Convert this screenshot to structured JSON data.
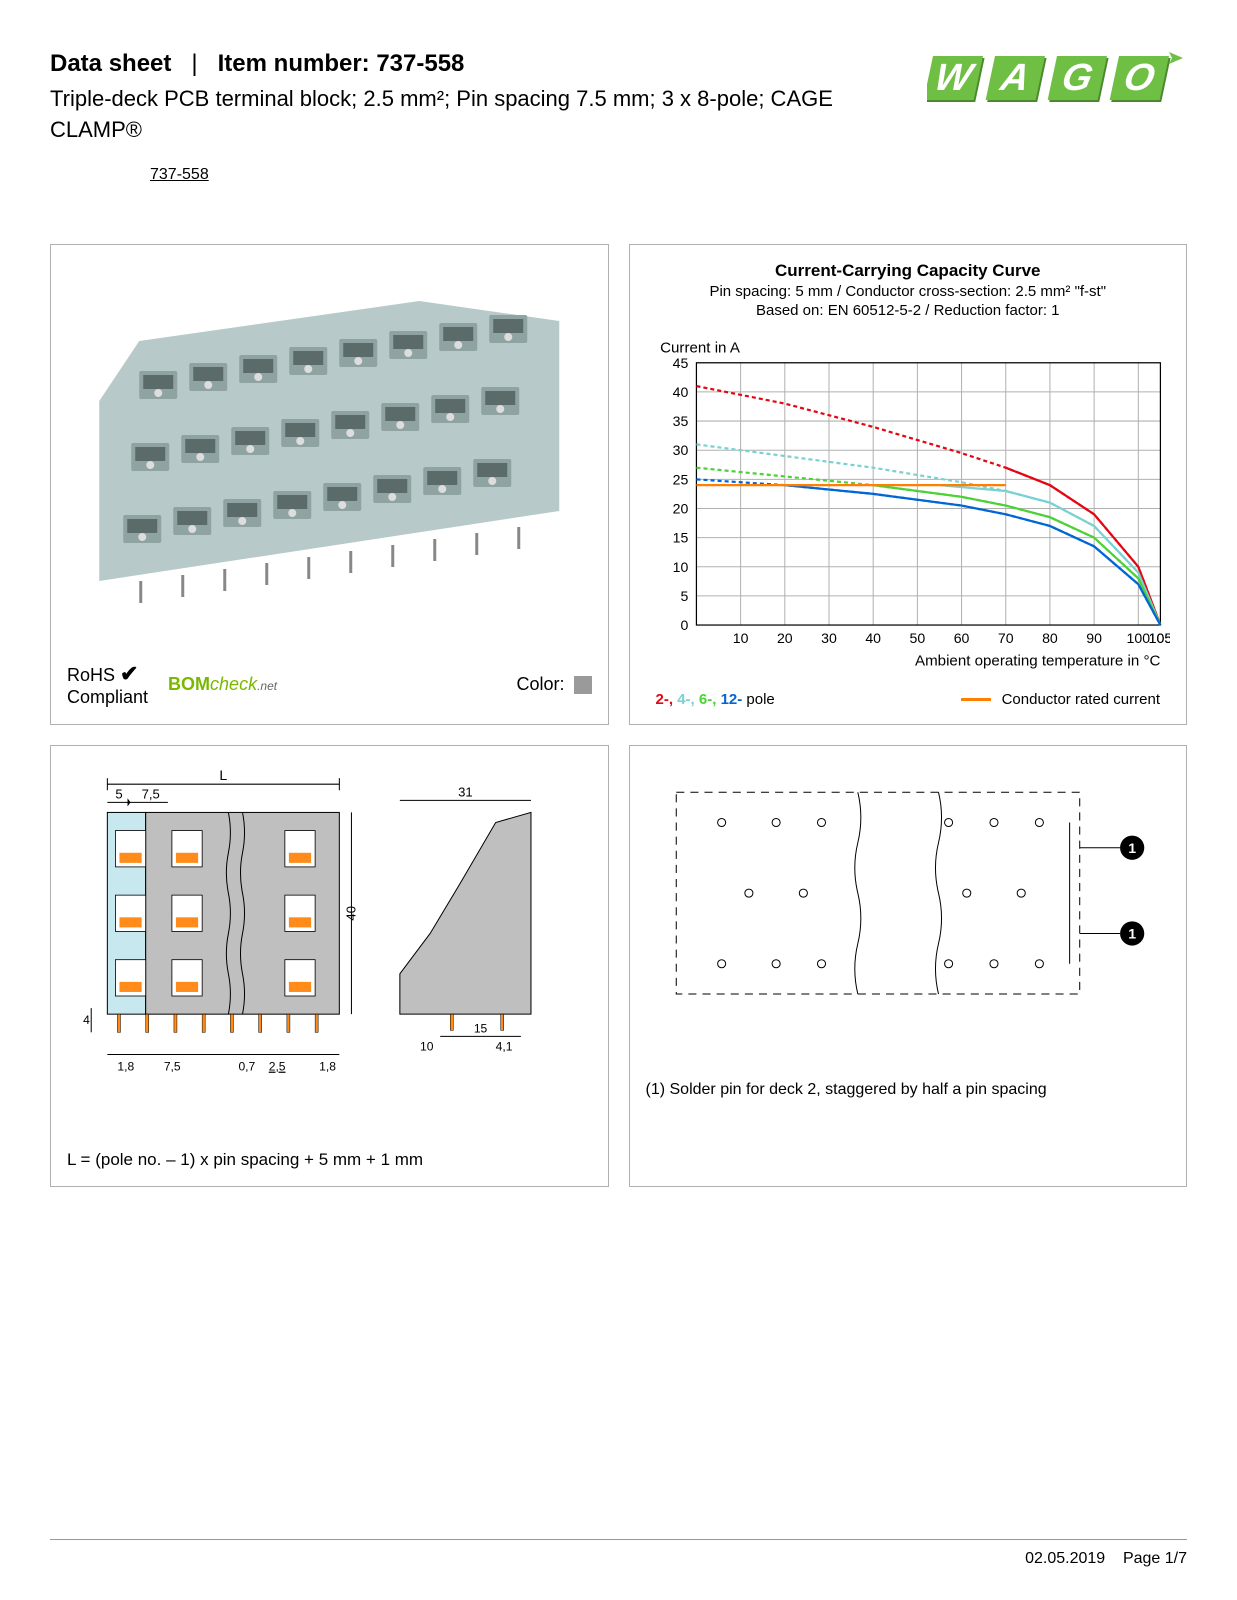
{
  "header": {
    "doc_type": "Data sheet",
    "separator": "|",
    "item_label": "Item number:",
    "item_number": "737-558",
    "description": "Triple-deck PCB terminal block; 2.5 mm²; Pin spacing 7.5 mm; 3 x 8-pole; CAGE CLAMP®",
    "part_link": "737-558",
    "logo_text": "WAGO",
    "logo_color": "#6fbf44",
    "logo_shadow": "#4a8a2c"
  },
  "compliance": {
    "rohs_line1": "RoHS",
    "rohs_line2": "Compliant",
    "check": "✔",
    "bom_prefix": "BOM",
    "bom_mid": "check",
    "bom_suffix": ".net",
    "color_label": "Color:",
    "color_swatch": "#9a9a9a"
  },
  "product_render": {
    "body_color": "#b7c9c8",
    "body_shadow": "#8fa3a2",
    "lever_color": "#dddddd",
    "rows": 3,
    "cols": 8
  },
  "chart": {
    "title": "Current-Carrying Capacity Curve",
    "sub1": "Pin spacing: 5 mm / Conductor cross-section: 2.5 mm² \"f-st\"",
    "sub2": "Based on: EN 60512-5-2 / Reduction factor: 1",
    "y_label": "Current in A",
    "x_label": "Ambient operating temperature in °C",
    "y_min": 0,
    "y_max": 45,
    "y_step": 5,
    "x_min": 0,
    "x_max": 105,
    "x_step": 10,
    "grid_color": "#b0b0b0",
    "bg_color": "#ffffff",
    "series": [
      {
        "name": "2-pole",
        "color": "#e30613",
        "dash": "4,3",
        "pts": [
          [
            0,
            41
          ],
          [
            20,
            38
          ],
          [
            40,
            34
          ],
          [
            60,
            29.5
          ],
          [
            70,
            27
          ],
          [
            80,
            24
          ],
          [
            90,
            19
          ],
          [
            100,
            10
          ],
          [
            105,
            0
          ]
        ]
      },
      {
        "name": "4-pole",
        "color": "#7ad1d1",
        "dash": "4,3",
        "pts": [
          [
            0,
            31
          ],
          [
            20,
            29
          ],
          [
            40,
            27
          ],
          [
            60,
            24.5
          ],
          [
            70,
            23
          ],
          [
            80,
            21
          ],
          [
            90,
            17
          ],
          [
            100,
            9
          ],
          [
            105,
            0
          ]
        ]
      },
      {
        "name": "6-pole",
        "color": "#4cd137",
        "dash": "4,3",
        "pts": [
          [
            0,
            27
          ],
          [
            20,
            25.5
          ],
          [
            40,
            24
          ],
          [
            60,
            22
          ],
          [
            70,
            20.5
          ],
          [
            80,
            18.5
          ],
          [
            90,
            15
          ],
          [
            100,
            8
          ],
          [
            105,
            0
          ]
        ]
      },
      {
        "name": "12-pole",
        "color": "#0066d6",
        "dash": "4,3",
        "pts": [
          [
            0,
            25
          ],
          [
            10,
            24.5
          ],
          [
            20,
            24
          ],
          [
            40,
            22.5
          ],
          [
            60,
            20.5
          ],
          [
            70,
            19
          ],
          [
            80,
            17
          ],
          [
            90,
            13.5
          ],
          [
            100,
            7
          ],
          [
            105,
            0
          ]
        ]
      },
      {
        "name": "2-rated",
        "color": "#e30613",
        "dash": "",
        "pts": [
          [
            70,
            27
          ],
          [
            80,
            24
          ],
          [
            90,
            19
          ],
          [
            100,
            10
          ],
          [
            105,
            0
          ]
        ]
      },
      {
        "name": "4-rated",
        "color": "#7ad1d1",
        "dash": "",
        "pts": [
          [
            55,
            24
          ],
          [
            70,
            23
          ],
          [
            80,
            21
          ],
          [
            90,
            17
          ],
          [
            100,
            9
          ],
          [
            105,
            0
          ]
        ]
      },
      {
        "name": "6-rated",
        "color": "#4cd137",
        "dash": "",
        "pts": [
          [
            40,
            24
          ],
          [
            60,
            22
          ],
          [
            70,
            20.5
          ],
          [
            80,
            18.5
          ],
          [
            90,
            15
          ],
          [
            100,
            8
          ],
          [
            105,
            0
          ]
        ]
      },
      {
        "name": "12-rated",
        "color": "#0066d6",
        "dash": "",
        "pts": [
          [
            20,
            24
          ],
          [
            40,
            22.5
          ],
          [
            60,
            20.5
          ],
          [
            70,
            19
          ],
          [
            80,
            17
          ],
          [
            90,
            13.5
          ],
          [
            100,
            7
          ],
          [
            105,
            0
          ]
        ]
      },
      {
        "name": "conductor-rated",
        "color": "#ff7f00",
        "dash": "",
        "pts": [
          [
            0,
            24
          ],
          [
            70,
            24
          ]
        ]
      }
    ],
    "legend": {
      "poles": [
        {
          "label": "2-",
          "color": "#e30613"
        },
        {
          "label": "4-",
          "color": "#7ad1d1"
        },
        {
          "label": "6-",
          "color": "#4cd137"
        },
        {
          "label": "12-",
          "color": "#0066d6"
        }
      ],
      "poles_suffix": " pole",
      "rated_label": "Conductor rated current",
      "rated_color": "#ff7f00"
    }
  },
  "dimensions": {
    "L_label": "L",
    "left_offset": "5",
    "pitch": "7,5",
    "height": "40",
    "bottom_pitch": "7,5",
    "pin_thick": "0,7",
    "pin_len_a": "1,8",
    "pin_len_b": "1,8",
    "pin_group": "2,5",
    "side_width": "31",
    "side_base": "15",
    "side_inset": "10",
    "side_pin": "4,1",
    "tail": "4",
    "formula": "L = (pole no. – 1) x pin spacing + 5 mm + 1 mm",
    "body_fill": "#bfbfbf",
    "slot_fill": "#c8e8f0",
    "clamp_fill": "#ff8c1a",
    "outline": "#000000"
  },
  "pin_layout": {
    "note": "(1) Solder pin for deck 2, staggered by half a pin spacing",
    "marker": "1",
    "outline": "#000000"
  },
  "footer": {
    "date": "02.05.2019",
    "page": "Page 1/7"
  }
}
